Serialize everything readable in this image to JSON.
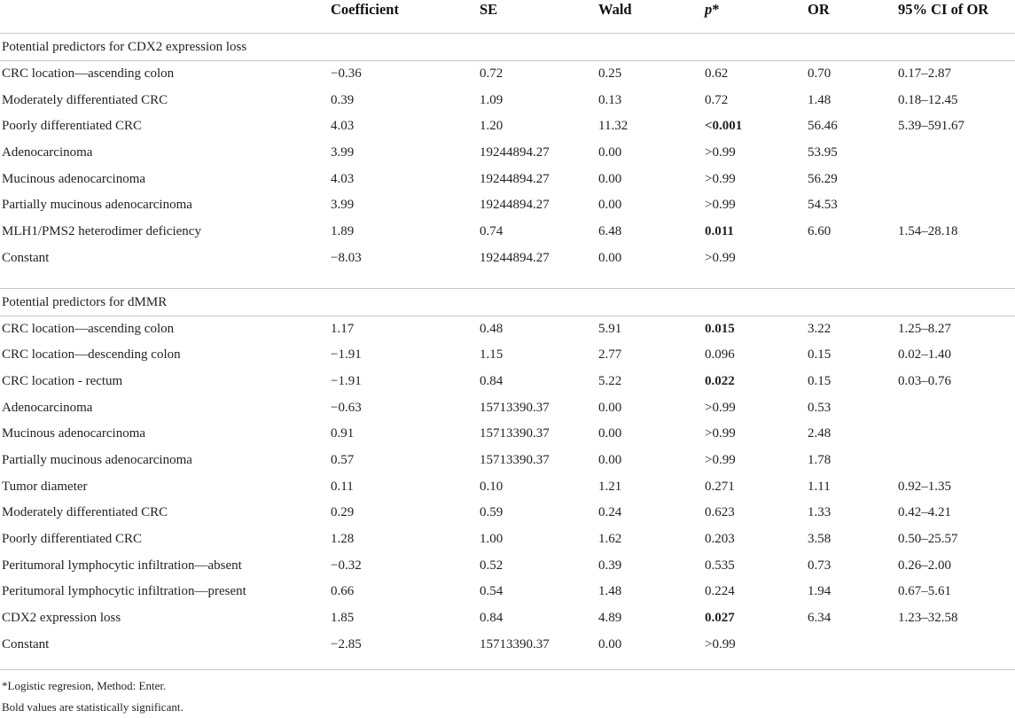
{
  "headers": {
    "coefficient": "Coefficient",
    "se": "SE",
    "wald": "Wald",
    "p": "p",
    "p_mark": "*",
    "or": "OR",
    "ci": "95% CI of OR"
  },
  "sections": [
    {
      "title": "Potential predictors for CDX2 expression loss",
      "rows": [
        {
          "label": "CRC location—ascending colon",
          "coef": "−0.36",
          "se": "0.72",
          "wald": "0.25",
          "p": "0.62",
          "p_bold": false,
          "or": "0.70",
          "ci": "0.17–2.87"
        },
        {
          "label": "Moderately differentiated CRC",
          "coef": "0.39",
          "se": "1.09",
          "wald": "0.13",
          "p": "0.72",
          "p_bold": false,
          "or": "1.48",
          "ci": "0.18–12.45"
        },
        {
          "label": "Poorly differentiated CRC",
          "coef": "4.03",
          "se": "1.20",
          "wald": "11.32",
          "p": "<0.001",
          "p_bold": true,
          "or": "56.46",
          "ci": "5.39–591.67"
        },
        {
          "label": "Adenocarcinoma",
          "coef": "3.99",
          "se": "19244894.27",
          "wald": "0.00",
          "p": ">0.99",
          "p_bold": false,
          "or": "53.95",
          "ci": ""
        },
        {
          "label": "Mucinous adenocarcinoma",
          "coef": "4.03",
          "se": "19244894.27",
          "wald": "0.00",
          "p": ">0.99",
          "p_bold": false,
          "or": "56.29",
          "ci": ""
        },
        {
          "label": "Partially mucinous adenocarcinoma",
          "coef": "3.99",
          "se": "19244894.27",
          "wald": "0.00",
          "p": ">0.99",
          "p_bold": false,
          "or": "54.53",
          "ci": ""
        },
        {
          "label": "MLH1/PMS2 heterodimer deficiency",
          "coef": "1.89",
          "se": "0.74",
          "wald": "6.48",
          "p": "0.011",
          "p_bold": true,
          "or": "6.60",
          "ci": "1.54–28.18"
        },
        {
          "label": "Constant",
          "coef": "−8.03",
          "se": "19244894.27",
          "wald": "0.00",
          "p": ">0.99",
          "p_bold": false,
          "or": "",
          "ci": ""
        }
      ]
    },
    {
      "title": "Potential predictors for dMMR",
      "rows": [
        {
          "label": "CRC location—ascending colon",
          "coef": "1.17",
          "se": "0.48",
          "wald": "5.91",
          "p": "0.015",
          "p_bold": true,
          "or": "3.22",
          "ci": "1.25–8.27"
        },
        {
          "label": "CRC location—descending colon",
          "coef": "−1.91",
          "se": "1.15",
          "wald": "2.77",
          "p": "0.096",
          "p_bold": false,
          "or": "0.15",
          "ci": "0.02–1.40"
        },
        {
          "label": "CRC location - rectum",
          "coef": "−1.91",
          "se": "0.84",
          "wald": "5.22",
          "p": "0.022",
          "p_bold": true,
          "or": "0.15",
          "ci": "0.03–0.76"
        },
        {
          "label": "Adenocarcinoma",
          "coef": "−0.63",
          "se": "15713390.37",
          "wald": "0.00",
          "p": ">0.99",
          "p_bold": false,
          "or": "0.53",
          "ci": ""
        },
        {
          "label": "Mucinous adenocarcinoma",
          "coef": "0.91",
          "se": "15713390.37",
          "wald": "0.00",
          "p": ">0.99",
          "p_bold": false,
          "or": "2.48",
          "ci": ""
        },
        {
          "label": "Partially mucinous adenocarcinoma",
          "coef": "0.57",
          "se": "15713390.37",
          "wald": "0.00",
          "p": ">0.99",
          "p_bold": false,
          "or": "1.78",
          "ci": ""
        },
        {
          "label": "Tumor diameter",
          "coef": "0.11",
          "se": "0.10",
          "wald": "1.21",
          "p": "0.271",
          "p_bold": false,
          "or": "1.11",
          "ci": "0.92–1.35"
        },
        {
          "label": "Moderately differentiated CRC",
          "coef": "0.29",
          "se": "0.59",
          "wald": "0.24",
          "p": "0.623",
          "p_bold": false,
          "or": "1.33",
          "ci": "0.42–4.21"
        },
        {
          "label": "Poorly differentiated CRC",
          "coef": "1.28",
          "se": "1.00",
          "wald": "1.62",
          "p": "0.203",
          "p_bold": false,
          "or": "3.58",
          "ci": "0.50–25.57"
        },
        {
          "label": "Peritumoral lymphocytic infiltration—absent",
          "coef": "−0.32",
          "se": "0.52",
          "wald": "0.39",
          "p": "0.535",
          "p_bold": false,
          "or": "0.73",
          "ci": "0.26–2.00"
        },
        {
          "label": "Peritumoral lymphocytic infiltration—present",
          "coef": "0.66",
          "se": "0.54",
          "wald": "1.48",
          "p": "0.224",
          "p_bold": false,
          "or": "1.94",
          "ci": "0.67–5.61"
        },
        {
          "label": "CDX2 expression loss",
          "coef": "1.85",
          "se": "0.84",
          "wald": "4.89",
          "p": "0.027",
          "p_bold": true,
          "or": "6.34",
          "ci": "1.23–32.58"
        },
        {
          "label": "Constant",
          "coef": "−2.85",
          "se": "15713390.37",
          "wald": "0.00",
          "p": ">0.99",
          "p_bold": false,
          "or": "",
          "ci": ""
        }
      ]
    }
  ],
  "footnotes": [
    "*Logistic regresion, Method: Enter.",
    "Bold values are statistically significant."
  ]
}
